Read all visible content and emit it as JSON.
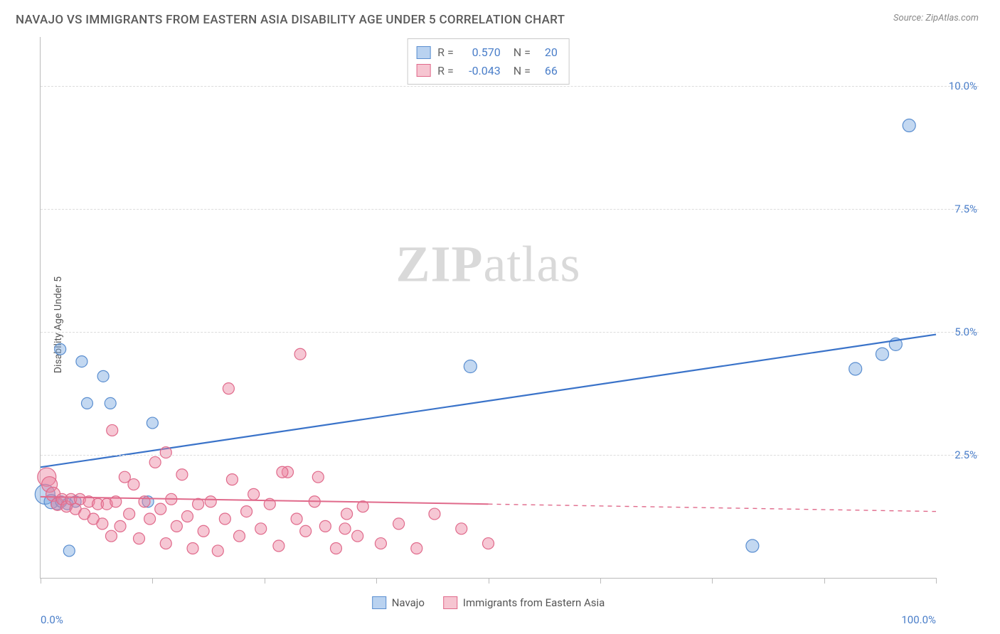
{
  "title": "NAVAJO VS IMMIGRANTS FROM EASTERN ASIA DISABILITY AGE UNDER 5 CORRELATION CHART",
  "source": "Source: ZipAtlas.com",
  "y_axis_label": "Disability Age Under 5",
  "watermark": {
    "bold": "ZIP",
    "rest": "atlas"
  },
  "chart": {
    "type": "scatter",
    "background_color": "#ffffff",
    "grid_color": "#dcdcdc",
    "axis_color": "#bbbbbb",
    "xlim": [
      0,
      100
    ],
    "ylim": [
      0,
      11
    ],
    "x_ticks_minor_step": 12.5,
    "y_ticks": [
      {
        "v": 2.5,
        "label": "2.5%"
      },
      {
        "v": 5.0,
        "label": "5.0%"
      },
      {
        "v": 7.5,
        "label": "7.5%"
      },
      {
        "v": 10.0,
        "label": "10.0%"
      }
    ],
    "x_tick_labels": [
      {
        "v": 0,
        "label": "0.0%",
        "align": "left"
      },
      {
        "v": 100,
        "label": "100.0%",
        "align": "right"
      }
    ],
    "series": [
      {
        "id": "navajo",
        "label": "Navajo",
        "swatch_fill": "#b9d2f0",
        "swatch_border": "#5a8ed0",
        "marker_fill": "rgba(122,168,224,0.45)",
        "marker_stroke": "#5a8ed0",
        "marker_r": 8,
        "line_color": "#3a73c9",
        "line_width": 2.2,
        "line_dash_after_x": 100,
        "stats": {
          "R": "0.570",
          "N": "20"
        },
        "trend": {
          "x1": 0,
          "y1": 2.25,
          "x2": 100,
          "y2": 4.95
        },
        "points": [
          {
            "x": 0.5,
            "y": 1.7,
            "r": 14
          },
          {
            "x": 1.2,
            "y": 1.55,
            "r": 10
          },
          {
            "x": 1.8,
            "y": 1.5,
            "r": 8
          },
          {
            "x": 2.3,
            "y": 1.55,
            "r": 8
          },
          {
            "x": 3.0,
            "y": 1.5,
            "r": 8
          },
          {
            "x": 3.9,
            "y": 1.55,
            "r": 8
          },
          {
            "x": 2.2,
            "y": 4.65,
            "r": 8
          },
          {
            "x": 4.6,
            "y": 4.4,
            "r": 8
          },
          {
            "x": 5.2,
            "y": 3.55,
            "r": 8
          },
          {
            "x": 7.8,
            "y": 3.55,
            "r": 8
          },
          {
            "x": 7.0,
            "y": 4.1,
            "r": 8
          },
          {
            "x": 12.5,
            "y": 3.15,
            "r": 8
          },
          {
            "x": 12.0,
            "y": 1.55,
            "r": 8
          },
          {
            "x": 3.2,
            "y": 0.55,
            "r": 8
          },
          {
            "x": 48.0,
            "y": 4.3,
            "r": 9
          },
          {
            "x": 79.5,
            "y": 0.65,
            "r": 9
          },
          {
            "x": 91.0,
            "y": 4.25,
            "r": 9
          },
          {
            "x": 94.0,
            "y": 4.55,
            "r": 9
          },
          {
            "x": 95.5,
            "y": 4.75,
            "r": 9
          },
          {
            "x": 97.0,
            "y": 9.2,
            "r": 9
          }
        ]
      },
      {
        "id": "immigrants",
        "label": "Immigrants from Eastern Asia",
        "swatch_fill": "#f6c5d1",
        "swatch_border": "#e06a8b",
        "marker_fill": "rgba(235,130,160,0.45)",
        "marker_stroke": "#e06a8b",
        "marker_r": 8,
        "line_color": "#e06a8b",
        "line_width": 2.0,
        "line_dash_after_x": 50,
        "stats": {
          "R": "-0.043",
          "N": "66"
        },
        "trend": {
          "x1": 0,
          "y1": 1.65,
          "x2": 100,
          "y2": 1.35
        },
        "points": [
          {
            "x": 0.7,
            "y": 2.05,
            "r": 13
          },
          {
            "x": 1.0,
            "y": 1.9,
            "r": 11
          },
          {
            "x": 1.4,
            "y": 1.7,
            "r": 10
          },
          {
            "x": 1.9,
            "y": 1.5,
            "r": 9
          },
          {
            "x": 2.4,
            "y": 1.6,
            "r": 8
          },
          {
            "x": 2.9,
            "y": 1.45,
            "r": 8
          },
          {
            "x": 3.4,
            "y": 1.6,
            "r": 8
          },
          {
            "x": 3.9,
            "y": 1.4,
            "r": 8
          },
          {
            "x": 4.4,
            "y": 1.6,
            "r": 8
          },
          {
            "x": 4.9,
            "y": 1.3,
            "r": 8
          },
          {
            "x": 5.4,
            "y": 1.55,
            "r": 8
          },
          {
            "x": 5.9,
            "y": 1.2,
            "r": 8
          },
          {
            "x": 6.4,
            "y": 1.5,
            "r": 8
          },
          {
            "x": 6.9,
            "y": 1.1,
            "r": 8
          },
          {
            "x": 7.4,
            "y": 1.5,
            "r": 8
          },
          {
            "x": 7.9,
            "y": 0.85,
            "r": 8
          },
          {
            "x": 8.4,
            "y": 1.55,
            "r": 8
          },
          {
            "x": 8.9,
            "y": 1.05,
            "r": 8
          },
          {
            "x": 9.4,
            "y": 2.05,
            "r": 8
          },
          {
            "x": 9.9,
            "y": 1.3,
            "r": 8
          },
          {
            "x": 10.4,
            "y": 1.9,
            "r": 8
          },
          {
            "x": 11.0,
            "y": 0.8,
            "r": 8
          },
          {
            "x": 11.6,
            "y": 1.55,
            "r": 8
          },
          {
            "x": 12.2,
            "y": 1.2,
            "r": 8
          },
          {
            "x": 12.8,
            "y": 2.35,
            "r": 8
          },
          {
            "x": 13.4,
            "y": 1.4,
            "r": 8
          },
          {
            "x": 14.0,
            "y": 0.7,
            "r": 8
          },
          {
            "x": 14.6,
            "y": 1.6,
            "r": 8
          },
          {
            "x": 15.2,
            "y": 1.05,
            "r": 8
          },
          {
            "x": 15.8,
            "y": 2.1,
            "r": 8
          },
          {
            "x": 16.4,
            "y": 1.25,
            "r": 8
          },
          {
            "x": 17.0,
            "y": 0.6,
            "r": 8
          },
          {
            "x": 17.6,
            "y": 1.5,
            "r": 8
          },
          {
            "x": 18.2,
            "y": 0.95,
            "r": 8
          },
          {
            "x": 19.0,
            "y": 1.55,
            "r": 8
          },
          {
            "x": 19.8,
            "y": 0.55,
            "r": 8
          },
          {
            "x": 20.6,
            "y": 1.2,
            "r": 8
          },
          {
            "x": 21.4,
            "y": 2.0,
            "r": 8
          },
          {
            "x": 22.2,
            "y": 0.85,
            "r": 8
          },
          {
            "x": 23.0,
            "y": 1.35,
            "r": 8
          },
          {
            "x": 23.8,
            "y": 1.7,
            "r": 8
          },
          {
            "x": 24.6,
            "y": 1.0,
            "r": 8
          },
          {
            "x": 25.6,
            "y": 1.5,
            "r": 8
          },
          {
            "x": 26.6,
            "y": 0.65,
            "r": 8
          },
          {
            "x": 27.6,
            "y": 2.15,
            "r": 8
          },
          {
            "x": 28.6,
            "y": 1.2,
            "r": 8
          },
          {
            "x": 29.6,
            "y": 0.95,
            "r": 8
          },
          {
            "x": 30.6,
            "y": 1.55,
            "r": 8
          },
          {
            "x": 31.8,
            "y": 1.05,
            "r": 8
          },
          {
            "x": 33.0,
            "y": 0.6,
            "r": 8
          },
          {
            "x": 34.2,
            "y": 1.3,
            "r": 8
          },
          {
            "x": 35.4,
            "y": 0.85,
            "r": 8
          },
          {
            "x": 27.0,
            "y": 2.15,
            "r": 8
          },
          {
            "x": 31.0,
            "y": 2.05,
            "r": 8
          },
          {
            "x": 29.0,
            "y": 4.55,
            "r": 8
          },
          {
            "x": 21.0,
            "y": 3.85,
            "r": 8
          },
          {
            "x": 8.0,
            "y": 3.0,
            "r": 8
          },
          {
            "x": 14.0,
            "y": 2.55,
            "r": 8
          },
          {
            "x": 34.0,
            "y": 1.0,
            "r": 8
          },
          {
            "x": 36.0,
            "y": 1.45,
            "r": 8
          },
          {
            "x": 38.0,
            "y": 0.7,
            "r": 8
          },
          {
            "x": 40.0,
            "y": 1.1,
            "r": 8
          },
          {
            "x": 42.0,
            "y": 0.6,
            "r": 8
          },
          {
            "x": 44.0,
            "y": 1.3,
            "r": 8
          },
          {
            "x": 47.0,
            "y": 1.0,
            "r": 8
          },
          {
            "x": 50.0,
            "y": 0.7,
            "r": 8
          }
        ]
      }
    ]
  }
}
